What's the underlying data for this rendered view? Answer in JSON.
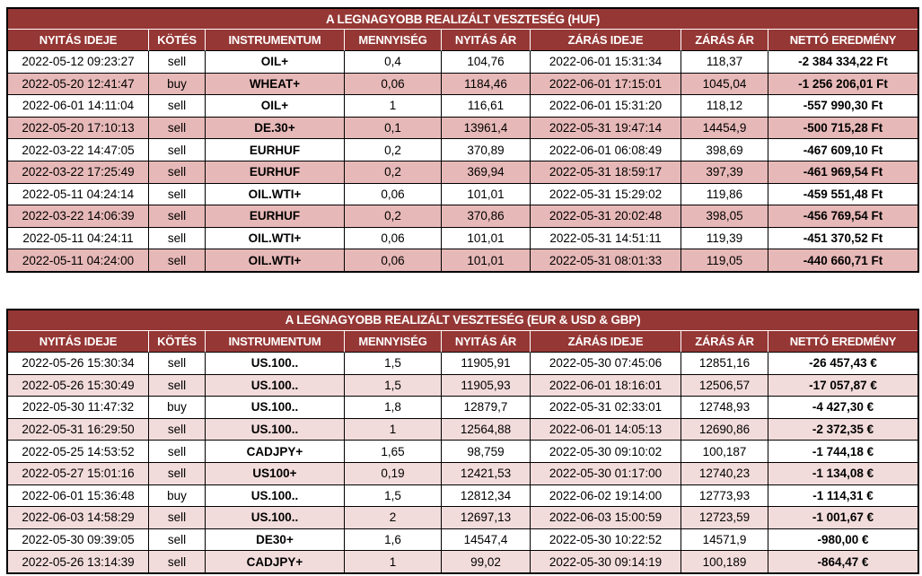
{
  "colors": {
    "header_bg": "#953735",
    "header_text": "#ffffff",
    "header_divider": "#ffffff",
    "grid_border": "#000000",
    "text": "#000000",
    "row_bg": "#ffffff",
    "band_huf": "#e6b8b7",
    "band_fx": "#f2dcdb"
  },
  "chart_data": [
    {
      "type": "table",
      "title": "A LEGNAGYOBB REALIZÁLT VESZTESÉG (HUF)",
      "columns": [
        "NYITÁS IDEJE",
        "KÖTÉS",
        "INSTRUMENTUM",
        "MENNYISÉG",
        "NYITÁS ÁR",
        "ZÁRÁS IDEJE",
        "ZÁRÁS ÁR",
        "NETTÓ EREDMÉNY"
      ],
      "rows": [
        [
          "2022-05-12 09:23:27",
          "sell",
          "OIL+",
          "0,4",
          "104,76",
          "2022-06-01 15:31:34",
          "118,37",
          "-2 384 334,22 Ft"
        ],
        [
          "2022-05-20 12:41:47",
          "buy",
          "WHEAT+",
          "0,06",
          "1184,46",
          "2022-06-01 17:15:01",
          "1045,04",
          "-1 256 206,01 Ft"
        ],
        [
          "2022-06-01 14:11:04",
          "sell",
          "OIL+",
          "1",
          "116,61",
          "2022-06-01 15:31:20",
          "118,12",
          "-557 990,30 Ft"
        ],
        [
          "2022-05-20 17:10:13",
          "sell",
          "DE.30+",
          "0,1",
          "13961,4",
          "2022-05-31 19:47:14",
          "14454,9",
          "-500 715,28 Ft"
        ],
        [
          "2022-03-22 14:47:05",
          "sell",
          "EURHUF",
          "0,2",
          "370,89",
          "2022-06-01 06:08:49",
          "398,69",
          "-467 609,10 Ft"
        ],
        [
          "2022-03-22 17:25:49",
          "sell",
          "EURHUF",
          "0,2",
          "369,94",
          "2022-05-31 18:59:17",
          "397,39",
          "-461 969,54 Ft"
        ],
        [
          "2022-05-11 04:24:14",
          "sell",
          "OIL.WTI+",
          "0,06",
          "101,01",
          "2022-05-31 15:29:02",
          "119,86",
          "-459 551,48 Ft"
        ],
        [
          "2022-03-22 14:06:39",
          "sell",
          "EURHUF",
          "0,2",
          "370,86",
          "2022-05-31 20:02:48",
          "398,05",
          "-456 769,54 Ft"
        ],
        [
          "2022-05-11 04:24:11",
          "sell",
          "OIL.WTI+",
          "0,06",
          "101,01",
          "2022-05-31 14:51:11",
          "119,39",
          "-451 370,52 Ft"
        ],
        [
          "2022-05-11 04:24:00",
          "sell",
          "OIL.WTI+",
          "0,06",
          "101,01",
          "2022-05-31 08:01:33",
          "119,05",
          "-440 660,71 Ft"
        ]
      ]
    },
    {
      "type": "table",
      "title": "A LEGNAGYOBB REALIZÁLT VESZTESÉG (EUR & USD & GBP)",
      "columns": [
        "NYITÁS IDEJE",
        "KÖTÉS",
        "INSTRUMENTUM",
        "MENNYISÉG",
        "NYITÁS ÁR",
        "ZÁRÁS IDEJE",
        "ZÁRÁS ÁR",
        "NETTÓ EREDMÉNY"
      ],
      "rows": [
        [
          "2022-05-26 15:30:34",
          "sell",
          "US.100..",
          "1,5",
          "11905,91",
          "2022-05-30 07:45:06",
          "12851,16",
          "-26 457,43 €"
        ],
        [
          "2022-05-26 15:30:49",
          "sell",
          "US.100..",
          "1,5",
          "11905,93",
          "2022-06-01 18:16:01",
          "12506,57",
          "-17 057,87 €"
        ],
        [
          "2022-05-30 11:47:32",
          "buy",
          "US.100..",
          "1,8",
          "12879,7",
          "2022-05-31 02:33:01",
          "12748,93",
          "-4 427,30 €"
        ],
        [
          "2022-05-31 16:29:50",
          "sell",
          "US.100..",
          "1",
          "12564,88",
          "2022-06-01 14:05:13",
          "12690,86",
          "-2 372,35 €"
        ],
        [
          "2022-05-25 14:53:52",
          "sell",
          "CADJPY+",
          "1,65",
          "98,759",
          "2022-05-30 09:10:02",
          "100,187",
          "-1 744,18 €"
        ],
        [
          "2022-05-27 15:01:16",
          "sell",
          "US100+",
          "0,19",
          "12421,53",
          "2022-05-30 01:17:00",
          "12740,23",
          "-1 134,08 €"
        ],
        [
          "2022-06-01 15:36:48",
          "buy",
          "US.100..",
          "1,5",
          "12812,34",
          "2022-06-02 19:14:00",
          "12773,93",
          "-1 114,31 €"
        ],
        [
          "2022-06-03 14:58:29",
          "sell",
          "US.100..",
          "2",
          "12697,13",
          "2022-06-03 15:00:59",
          "12723,59",
          "-1 001,67 €"
        ],
        [
          "2022-05-30 09:39:05",
          "sell",
          "DE30+",
          "1,6",
          "14547,4",
          "2022-05-30 10:22:52",
          "14571,9",
          "-980,00 €"
        ],
        [
          "2022-05-26 13:14:39",
          "sell",
          "CADJPY+",
          "1",
          "99,02",
          "2022-05-30 09:14:19",
          "100,189",
          "-864,47 €"
        ]
      ]
    }
  ]
}
